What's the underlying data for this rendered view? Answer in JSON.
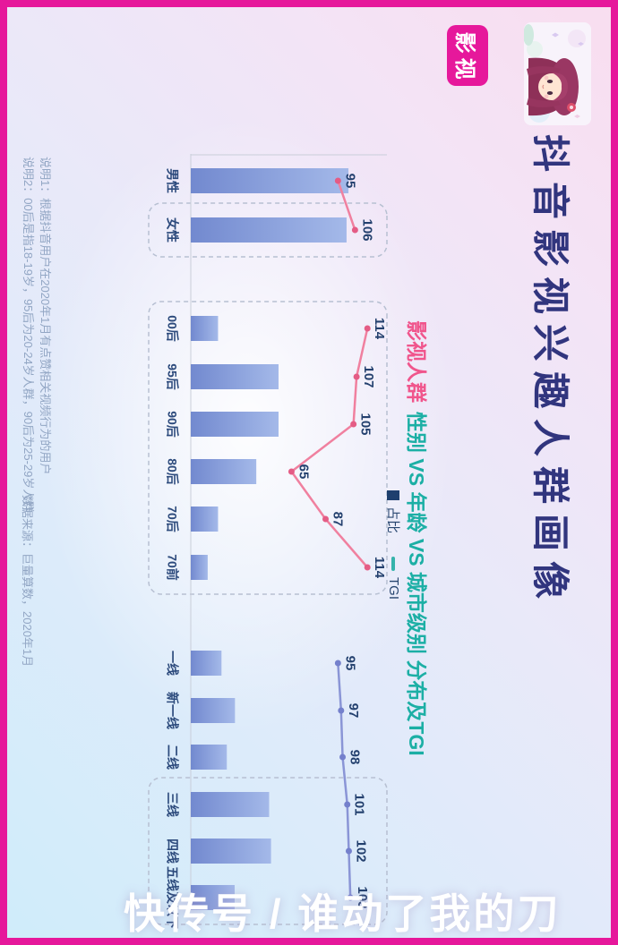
{
  "colors": {
    "frame": "#e6189b",
    "badge_bg": "#e6189b",
    "title": "#31357e",
    "subtitle_highlight": "#f0558c",
    "subtitle_rest": "#1cafa5",
    "bar_top": "#a4b9e9",
    "bar_bottom": "#7289cf",
    "axis": "#c9ced9",
    "box_dash": "#b7c0d2",
    "line_colors": [
      "#f0809f",
      "#f0809f",
      "#8a95d6"
    ],
    "dot_colors": [
      "#e45c85",
      "#e45c85",
      "#7480cc"
    ],
    "value_label": "#23406e",
    "category_label": "#2c4a7c",
    "legend_bar_swatch": "#1e3f6e",
    "legend_line_swatch": "#35b3ab",
    "note_text": "#92a6c4"
  },
  "header": {
    "badge": "影视",
    "title": "抖音影视兴趣人群画像",
    "subtitle_highlight": "影视人群",
    "subtitle_rest": "性别 VS 年龄 VS 城市级别 分布及TGI"
  },
  "chart_data": {
    "type": "bar+line",
    "title": "影视人群 性别 VS 年龄 VS 城市级别 分布及TGI",
    "orientation_note": "whole infographic displayed rotated 90° clockwise",
    "categories": [
      "男性",
      "女性",
      "00后",
      "95后",
      "90后",
      "80后",
      "70后",
      "70前",
      "一线",
      "新一线",
      "二线",
      "三线",
      "四线",
      "五线及以下"
    ],
    "groups": [
      {
        "name": "性别",
        "range": [
          0,
          1
        ]
      },
      {
        "name": "年龄",
        "range": [
          2,
          7
        ]
      },
      {
        "name": "城市级别",
        "range": [
          8,
          13
        ]
      }
    ],
    "series": [
      {
        "name": "占比",
        "type": "bar",
        "values_estimated": true,
        "values": [
          50.3,
          49.7,
          8.7,
          28,
          28,
          20.9,
          8.7,
          5.4,
          9.8,
          14.1,
          11.5,
          25,
          25.6,
          14
        ]
      },
      {
        "name": "TGI",
        "type": "line",
        "values": [
          95,
          106,
          114,
          107,
          105,
          65,
          87,
          114,
          95,
          97,
          98,
          101,
          102,
          103
        ]
      }
    ],
    "legend": [
      "占比",
      "TGI"
    ],
    "highlight_boxes": [
      [
        1,
        1
      ],
      [
        2,
        7
      ],
      [
        11,
        13
      ]
    ],
    "grid": false,
    "legend_position": "top-right of plot"
  },
  "footnotes": {
    "note1": "说明1：根据抖音用户在2020年1月有点赞相关视频行为的用户",
    "note2": "说明2：00后是指18-19岁，95后为20-24岁人群，90后为25-29岁人群",
    "source": "数据来源：巨量算数，2020年1月"
  },
  "watermark": {
    "text": "快传号 / 谁动了我的刀"
  }
}
